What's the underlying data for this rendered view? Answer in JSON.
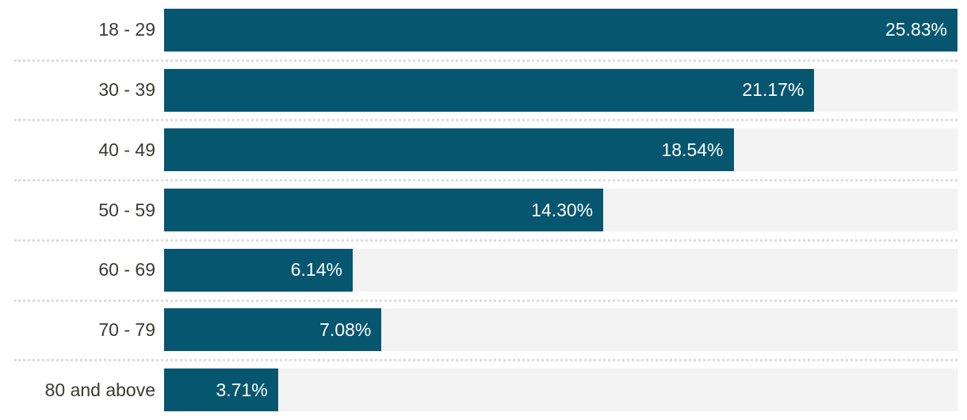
{
  "chart_data": {
    "type": "bar",
    "orientation": "horizontal",
    "title": "",
    "xlabel": "",
    "ylabel": "",
    "legend": "none",
    "grid": "dotted horizontal separators between rows",
    "categories": [
      "18 - 29",
      "30 - 39",
      "40 - 49",
      "50 - 59",
      "60 - 69",
      "70 - 79",
      "80 and above"
    ],
    "values": [
      25.83,
      21.17,
      18.54,
      14.3,
      6.14,
      7.08,
      3.71
    ],
    "value_labels": [
      "25.83%",
      "21.17%",
      "18.54%",
      "14.30%",
      "6.14%",
      "7.08%",
      "3.71%"
    ],
    "xlim": [
      0,
      25.83
    ],
    "layout_hint": "bar lengths scaled relative to max value; 25.83% fills the full track",
    "colors": {
      "bar": "#06566F",
      "track": "#F3F3F3",
      "label_text": "#3A3A33",
      "value_text": "#FFFFFF",
      "separator": "#DCDCDC",
      "background": "#FFFFFF"
    }
  }
}
